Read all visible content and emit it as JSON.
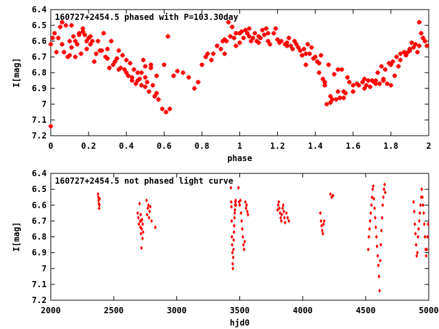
{
  "chart_data": [
    {
      "type": "scatter",
      "title": "160727+2454.5 phased with P=103.30day",
      "xlabel": "phase",
      "ylabel": "I[mag]",
      "xlim": [
        0,
        2
      ],
      "ylim": [
        7.2,
        6.4
      ],
      "y_inverted": true,
      "xticks": [
        "0",
        "0.2",
        "0.4",
        "0.6",
        "0.8",
        "1",
        "1.2",
        "1.4",
        "1.6",
        "1.8",
        "2"
      ],
      "yticks": [
        "6.4",
        "6.5",
        "6.6",
        "6.7",
        "6.8",
        "6.9",
        "7",
        "7.1",
        "7.2"
      ],
      "color": "#ff0000",
      "marker": "star",
      "series": [
        {
          "x": [
            0.0,
            0.02,
            0.03,
            0.05,
            0.06,
            0.07,
            0.08,
            0.1,
            0.1,
            0.11,
            0.12,
            0.13,
            0.14,
            0.15,
            0.16,
            0.17,
            0.18,
            0.19,
            0.2,
            0.21,
            0.22,
            0.23,
            0.25,
            0.26,
            0.28,
            0.29,
            0.3,
            0.31,
            0.32,
            0.34,
            0.35,
            0.36,
            0.37,
            0.38,
            0.39,
            0.4,
            0.41,
            0.42,
            0.43,
            0.44,
            0.45,
            0.46,
            0.47,
            0.48,
            0.49,
            0.5,
            0.5,
            0.51,
            0.52,
            0.53,
            0.54,
            0.55,
            0.56,
            0.57,
            0.59,
            0.6,
            0.61,
            0.63,
            0.65,
            0.67,
            0.7,
            0.73,
            0.76,
            0.78,
            0.8,
            0.82,
            0.83,
            0.85,
            0.86,
            0.88,
            0.9,
            0.91,
            0.92,
            0.93,
            0.94,
            0.95,
            0.96,
            0.97,
            0.98,
            1.0,
            1.0,
            1.01,
            1.02,
            1.03,
            1.04,
            1.05,
            1.06,
            1.07,
            1.08,
            1.09,
            1.1,
            1.11,
            1.12,
            1.13,
            1.14,
            1.15,
            1.16,
            1.18,
            1.19,
            1.2,
            1.21,
            1.22,
            1.24,
            1.25,
            1.26,
            1.27,
            1.28,
            1.29,
            1.3,
            1.31,
            1.32,
            1.33,
            1.34,
            1.35,
            1.36,
            1.37,
            1.38,
            1.39,
            1.4,
            1.41,
            1.42,
            1.43,
            1.44,
            1.45,
            1.46,
            1.47,
            1.48,
            1.49,
            1.5,
            1.51,
            1.52,
            1.53,
            1.54,
            1.55,
            1.56,
            1.57,
            1.58,
            1.6,
            1.62,
            1.63,
            1.65,
            1.66,
            1.67,
            1.68,
            1.69,
            1.7,
            1.71,
            1.72,
            1.73,
            1.74,
            1.75,
            1.76,
            1.77,
            1.78,
            1.79,
            1.8,
            1.81,
            1.82,
            1.83,
            1.84,
            1.85,
            1.87,
            1.88,
            1.89,
            1.9,
            1.91,
            1.92,
            1.93,
            1.94,
            1.95,
            1.96,
            1.97,
            1.98,
            1.99,
            0.0,
            0.01,
            0.04,
            0.06,
            0.09,
            0.11,
            0.13,
            0.15,
            0.17,
            0.19,
            0.21,
            0.24,
            0.27,
            0.3,
            0.33,
            0.36,
            0.4,
            0.43,
            0.46,
            0.48,
            0.5,
            0.53,
            0.56,
            0.62,
            0.92,
            0.98,
            1.05,
            1.1,
            1.15,
            1.25,
            1.35,
            1.42,
            1.45,
            1.48,
            1.52,
            1.55,
            1.6,
            1.66,
            1.72,
            1.76,
            1.8,
            1.85,
            1.9,
            1.95
          ],
          "y": [
            7.14,
            6.55,
            6.67,
            6.51,
            6.48,
            6.67,
            6.5,
            6.6,
            6.69,
            6.5,
            6.57,
            6.7,
            6.62,
            6.55,
            6.68,
            6.52,
            6.56,
            6.65,
            6.58,
            6.57,
            6.6,
            6.73,
            6.6,
            6.66,
            6.55,
            6.7,
            6.65,
            6.77,
            6.6,
            6.73,
            6.71,
            6.66,
            6.77,
            6.69,
            6.78,
            6.72,
            6.82,
            6.74,
            6.85,
            6.78,
            6.87,
            6.8,
            6.84,
            6.88,
            6.72,
            6.89,
            6.76,
            6.86,
            6.92,
            6.77,
            6.88,
            6.95,
            6.93,
            6.97,
            7.03,
            6.75,
            7.05,
            7.03,
            6.82,
            6.79,
            6.8,
            6.83,
            6.9,
            6.86,
            6.75,
            6.7,
            6.68,
            6.72,
            6.68,
            6.63,
            6.65,
            6.6,
            6.68,
            6.6,
            6.48,
            6.57,
            6.51,
            6.58,
            6.63,
            6.55,
            6.61,
            6.54,
            6.58,
            6.53,
            6.55,
            6.57,
            6.6,
            6.58,
            6.55,
            6.6,
            6.61,
            6.58,
            6.53,
            6.56,
            6.52,
            6.55,
            6.62,
            6.55,
            6.52,
            6.59,
            6.61,
            6.6,
            6.62,
            6.61,
            6.58,
            6.63,
            6.65,
            6.6,
            6.62,
            6.64,
            6.66,
            6.69,
            6.65,
            6.68,
            6.62,
            6.68,
            6.64,
            6.71,
            6.7,
            6.73,
            6.74,
            6.69,
            6.84,
            6.88,
            7.0,
            6.75,
            6.99,
            6.97,
            6.81,
            6.97,
            6.78,
            6.96,
            6.78,
            6.96,
            6.93,
            6.83,
            6.86,
            6.92,
            6.87,
            6.88,
            6.86,
            6.84,
            6.88,
            6.85,
            6.89,
            6.85,
            6.86,
            6.87,
            6.8,
            6.87,
            6.76,
            6.84,
            6.78,
            6.87,
            6.74,
            6.88,
            6.73,
            6.82,
            6.7,
            6.76,
            6.68,
            6.67,
            6.69,
            6.67,
            6.65,
            6.61,
            6.64,
            6.62,
            6.67,
            6.48,
            6.55,
            6.58,
            6.6,
            6.63,
            6.62,
            6.58,
            6.58,
            6.62,
            6.7,
            6.64,
            6.6,
            6.56,
            6.54,
            6.6,
            6.62,
            6.68,
            6.66,
            6.71,
            6.75,
            6.78,
            6.8,
            6.83,
            6.85,
            6.8,
            6.83,
            6.75,
            6.82,
            6.57,
            6.59,
            6.55,
            6.52,
            6.57,
            6.6,
            6.63,
            6.75,
            6.8,
            6.86,
            6.95,
            6.92,
            6.92,
            6.88,
            6.9,
            6.85,
            6.85,
            6.75,
            6.72,
            6.66,
            6.63
          ]
        }
      ]
    },
    {
      "type": "scatter",
      "title": "160727+2454.5 not phased light curve",
      "xlabel": "hjd0",
      "ylabel": "I[mag]",
      "xlim": [
        2000,
        5000
      ],
      "ylim": [
        7.2,
        6.4
      ],
      "y_inverted": true,
      "xticks": [
        "2000",
        "2500",
        "3000",
        "3500",
        "4000",
        "4500",
        "5000"
      ],
      "yticks": [
        "6.4",
        "6.5",
        "6.6",
        "6.7",
        "6.8",
        "6.9",
        "7",
        "7.1",
        "7.2"
      ],
      "color": "#ff0000",
      "marker": "diamond",
      "series": [
        {
          "x": [
            2375,
            2378,
            2380,
            2382,
            2384,
            2386,
            2388,
            2690,
            2695,
            2700,
            2705,
            2710,
            2712,
            2714,
            2716,
            2718,
            2720,
            2722,
            2725,
            2728,
            2730,
            2733,
            2760,
            2765,
            2770,
            2775,
            2780,
            2785,
            2790,
            2800,
            2830,
            3430,
            3432,
            3434,
            3436,
            3438,
            3440,
            3442,
            3444,
            3446,
            3448,
            3450,
            3452,
            3454,
            3456,
            3458,
            3460,
            3462,
            3464,
            3466,
            3468,
            3470,
            3490,
            3495,
            3500,
            3505,
            3510,
            3515,
            3520,
            3525,
            3530,
            3535,
            3540,
            3545,
            3550,
            3555,
            3560,
            3565,
            3800,
            3805,
            3810,
            3815,
            3820,
            3825,
            3830,
            3835,
            3840,
            3845,
            3850,
            3855,
            3860,
            3870,
            3880,
            3890,
            4140,
            4145,
            4150,
            4155,
            4160,
            4165,
            4170,
            4220,
            4230,
            4240,
            4520,
            4525,
            4530,
            4535,
            4540,
            4545,
            4550,
            4555,
            4560,
            4565,
            4570,
            4575,
            4580,
            4585,
            4590,
            4595,
            4600,
            4605,
            4610,
            4615,
            4620,
            4625,
            4630,
            4635,
            4640,
            4645,
            4650,
            4655,
            4880,
            4885,
            4890,
            4895,
            4900,
            4905,
            4910,
            4915,
            4920,
            4925,
            4930,
            4935,
            4940,
            4945,
            4950,
            4955,
            4960,
            4965,
            4970,
            4975,
            4980,
            4985,
            4990,
            4995
          ],
          "y": [
            6.53,
            6.55,
            6.57,
            6.59,
            6.62,
            6.6,
            6.56,
            6.65,
            6.68,
            6.72,
            6.59,
            6.7,
            6.74,
            6.66,
            6.78,
            6.7,
            6.87,
            6.75,
            6.69,
            6.81,
            6.72,
            6.77,
            6.57,
            6.66,
            6.62,
            6.6,
            6.68,
            6.64,
            6.61,
            6.7,
            6.74,
            6.49,
            6.58,
            6.61,
            6.7,
            6.8,
            6.85,
            6.9,
            6.97,
            7.0,
            6.93,
            6.88,
            6.82,
            6.77,
            6.73,
            6.68,
            6.65,
            6.63,
            6.6,
            6.58,
            6.57,
            6.6,
            6.49,
            6.58,
            6.6,
            6.57,
            6.65,
            6.7,
            6.75,
            6.8,
            6.85,
            6.88,
            6.83,
            6.58,
            6.62,
            6.6,
            6.64,
            6.66,
            6.63,
            6.6,
            6.58,
            6.62,
            6.65,
            6.68,
            6.7,
            6.66,
            6.62,
            6.6,
            6.64,
            6.68,
            6.71,
            6.65,
            6.68,
            6.7,
            6.65,
            6.7,
            6.73,
            6.76,
            6.78,
            6.72,
            6.7,
            6.53,
            6.55,
            6.54,
            6.88,
            6.8,
            6.75,
            6.7,
            6.65,
            6.6,
            6.55,
            6.5,
            6.48,
            6.56,
            6.62,
            6.68,
            6.74,
            6.8,
            6.86,
            6.92,
            6.98,
            7.05,
            7.14,
            6.95,
            6.85,
            6.76,
            6.68,
            6.6,
            6.55,
            6.5,
            6.47,
            6.52,
            6.58,
            6.64,
            6.72,
            6.78,
            6.85,
            6.92,
            6.9,
            6.8,
            6.75,
            6.7,
            6.65,
            6.6,
            6.55,
            6.5,
            6.55,
            6.6,
            6.65,
            6.72,
            6.8,
            6.88,
            6.92,
            6.88,
            6.8,
            6.72
          ]
        }
      ]
    }
  ]
}
